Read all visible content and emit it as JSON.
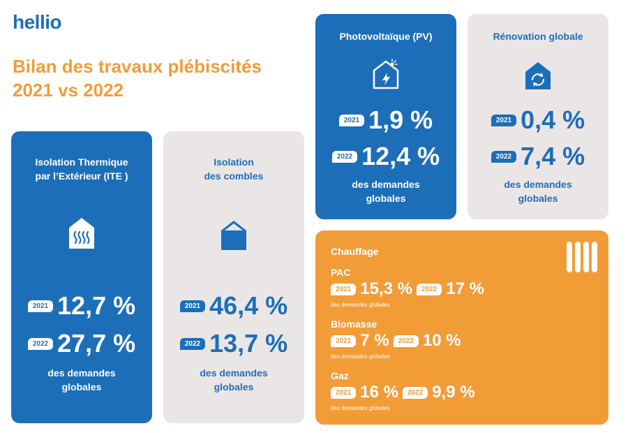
{
  "brand": {
    "logo": "hellio"
  },
  "headline": {
    "line1": "Bilan des travaux plébiscités",
    "line2": "2021 vs 2022"
  },
  "colors": {
    "blue": "#1c6eb9",
    "orange": "#f29c38",
    "grey": "#ebe6e6"
  },
  "cards": {
    "ite": {
      "title_line1": "Isolation Thermique",
      "title_line2": "par l’Extérieur (ITE )",
      "icon": "house-heat-icon",
      "year1": "2021",
      "value1": "12,7 %",
      "year2": "2022",
      "value2": "27,7 %",
      "foot_line1": "des demandes",
      "foot_line2": "globales"
    },
    "combles": {
      "title_line1": "Isolation",
      "title_line2": "des combles",
      "icon": "attic-icon",
      "year1": "2021",
      "value1": "46,4 %",
      "year2": "2022",
      "value2": "13,7 %",
      "foot_line1": "des demandes",
      "foot_line2": "globales"
    },
    "pv": {
      "title": "Photovoltaïque (PV)",
      "icon": "solar-house-icon",
      "year1": "2021",
      "value1": "1,9 %",
      "year2": "2022",
      "value2": "12,4 %",
      "foot_line1": "des demandes",
      "foot_line2": "globales"
    },
    "renovation": {
      "title": "Rénovation globale",
      "icon": "renovation-house-icon",
      "year1": "2021",
      "value1": "0,4 %",
      "year2": "2022",
      "value2": "7,4 %",
      "foot_line1": "des demandes",
      "foot_line2": "globales"
    },
    "chauffage": {
      "title": "Chauffage",
      "icon": "radiator-icon",
      "sub": "des demandes globales",
      "items": [
        {
          "name": "PAC",
          "year1": "2021",
          "value1": "15,3 %",
          "year2": "2022",
          "value2": "17 %"
        },
        {
          "name": "Biomasse",
          "year1": "2021",
          "value1": "7 %",
          "year2": "2022",
          "value2": "10 %"
        },
        {
          "name": "Gaz",
          "year1": "2021",
          "value1": "16 %",
          "year2": "2022",
          "value2": "9,9 %"
        }
      ]
    }
  }
}
